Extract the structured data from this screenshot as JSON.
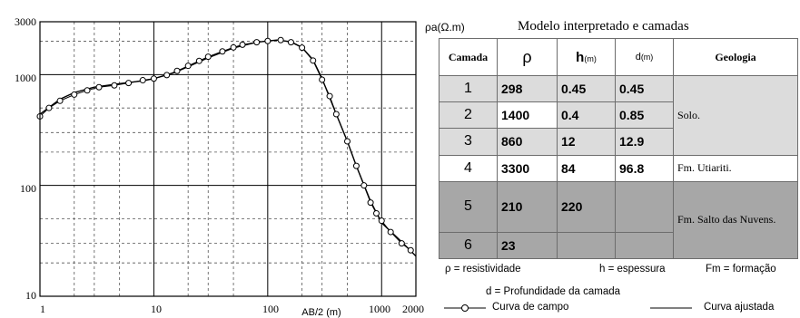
{
  "chart_data": {
    "type": "line",
    "x_scale": "log",
    "y_scale": "log",
    "xlim": [
      1,
      2000
    ],
    "ylim": [
      10,
      3000
    ],
    "x_ticks": [
      "1",
      "10",
      "100",
      "1000",
      "2000"
    ],
    "y_ticks": [
      "3000",
      "1000",
      "100",
      "10"
    ],
    "xlabel": "AB/2 (m)",
    "ylabel": "ρa(Ω.m)",
    "grid": true,
    "series": [
      {
        "name": "Curva de campo",
        "style": "line-with-circles",
        "points": [
          [
            1,
            420
          ],
          [
            1.2,
            500
          ],
          [
            1.5,
            580
          ],
          [
            2,
            660
          ],
          [
            2.6,
            720
          ],
          [
            3.3,
            770
          ],
          [
            4.5,
            800
          ],
          [
            6,
            840
          ],
          [
            8,
            890
          ],
          [
            10,
            920
          ],
          [
            13,
            990
          ],
          [
            16,
            1080
          ],
          [
            20,
            1200
          ],
          [
            25,
            1330
          ],
          [
            30,
            1450
          ],
          [
            40,
            1620
          ],
          [
            50,
            1760
          ],
          [
            60,
            1860
          ],
          [
            80,
            1960
          ],
          [
            100,
            2010
          ],
          [
            130,
            2050
          ],
          [
            160,
            1960
          ],
          [
            200,
            1750
          ],
          [
            250,
            1340
          ],
          [
            300,
            900
          ],
          [
            350,
            640
          ],
          [
            400,
            440
          ],
          [
            500,
            250
          ],
          [
            600,
            150
          ],
          [
            700,
            100
          ],
          [
            800,
            70
          ],
          [
            900,
            56
          ],
          [
            1000,
            48
          ],
          [
            1200,
            38
          ],
          [
            1500,
            30
          ],
          [
            1800,
            26
          ]
        ]
      },
      {
        "name": "Curva ajustada",
        "style": "line",
        "points": [
          [
            1,
            440
          ],
          [
            1.5,
            600
          ],
          [
            2,
            690
          ],
          [
            3,
            770
          ],
          [
            5,
            830
          ],
          [
            8,
            880
          ],
          [
            10,
            920
          ],
          [
            15,
            1040
          ],
          [
            20,
            1180
          ],
          [
            30,
            1420
          ],
          [
            50,
            1740
          ],
          [
            80,
            1960
          ],
          [
            120,
            2050
          ],
          [
            160,
            1980
          ],
          [
            200,
            1760
          ],
          [
            250,
            1360
          ],
          [
            300,
            920
          ],
          [
            400,
            440
          ],
          [
            500,
            250
          ],
          [
            600,
            150
          ],
          [
            800,
            72
          ],
          [
            1000,
            46
          ],
          [
            1500,
            31
          ],
          [
            2000,
            23
          ]
        ]
      }
    ]
  },
  "panel": {
    "unit_label": "ρa(Ω.m)",
    "title": "Modelo interpretado e camadas"
  },
  "table": {
    "headers": {
      "camada": "Camada",
      "rho": "ρ",
      "h": "h",
      "h_unit": "(m)",
      "d": "d",
      "d_unit": "(m)",
      "geologia": "Geologia"
    },
    "rows": [
      {
        "camada": "1",
        "rho": "298",
        "h": "0.45",
        "d": "0.45"
      },
      {
        "camada": "2",
        "rho": "1400",
        "h": "0.4",
        "d": "0.85"
      },
      {
        "camada": "3",
        "rho": "860",
        "h": "12",
        "d": "12.9"
      },
      {
        "camada": "4",
        "rho": "3300",
        "h": "84",
        "d": "96.8"
      },
      {
        "camada": "5",
        "rho": "210",
        "h": "220",
        "d": ""
      },
      {
        "camada": "6",
        "rho": "23",
        "h": "",
        "d": ""
      }
    ],
    "geology": {
      "solo": "Solo.",
      "utiariti": "Fm. Utiariti.",
      "salto": "Fm. Salto das Nuvens."
    }
  },
  "legend": {
    "rho_def": "ρ = resistividade",
    "h_def": "h = espessura",
    "fm_def": "Fm = formação",
    "d_def": "d = Profundidade da camada",
    "campo": "Curva de campo",
    "ajustada": "Curva ajustada"
  }
}
